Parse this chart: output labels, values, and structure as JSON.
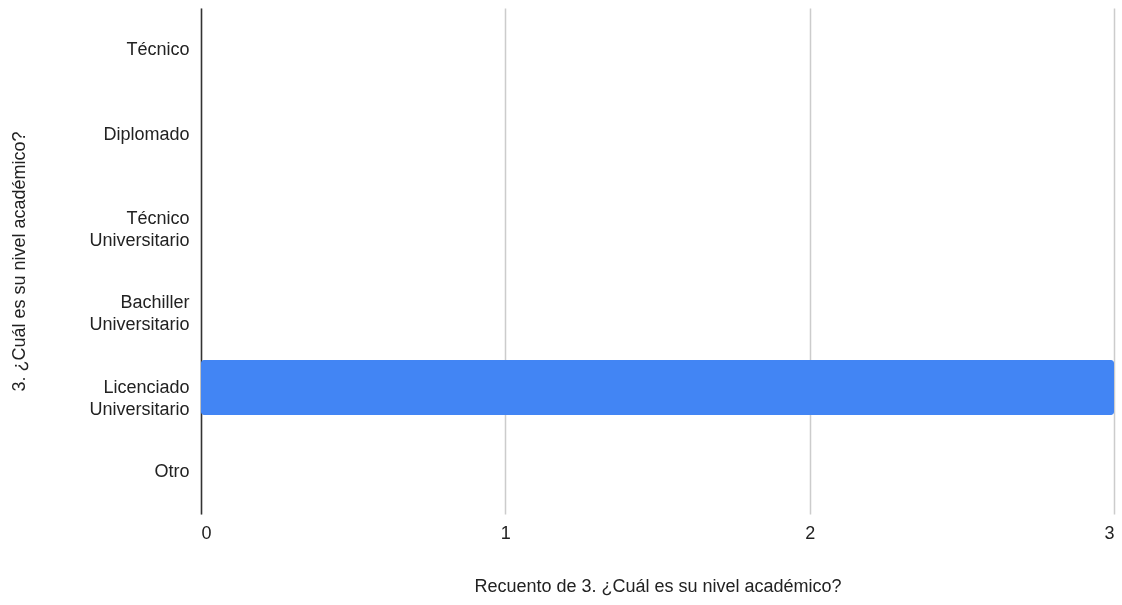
{
  "chart_data": {
    "type": "bar",
    "orientation": "horizontal",
    "xlabel": "Recuento de 3. ¿Cuál es su nivel académico?",
    "ylabel": "3. ¿Cuál es su nivel académico?",
    "categories": [
      "Técnico",
      "Diplomado",
      "Técnico Universitario",
      "Bachiller Universitario",
      "Licenciado Universitario",
      "Otro"
    ],
    "values": [
      0,
      0,
      0,
      0,
      3,
      0
    ],
    "color": "#4285f4",
    "xlim": [
      0,
      3
    ],
    "xticks": [
      0,
      1,
      2,
      3
    ],
    "grid": "x"
  }
}
